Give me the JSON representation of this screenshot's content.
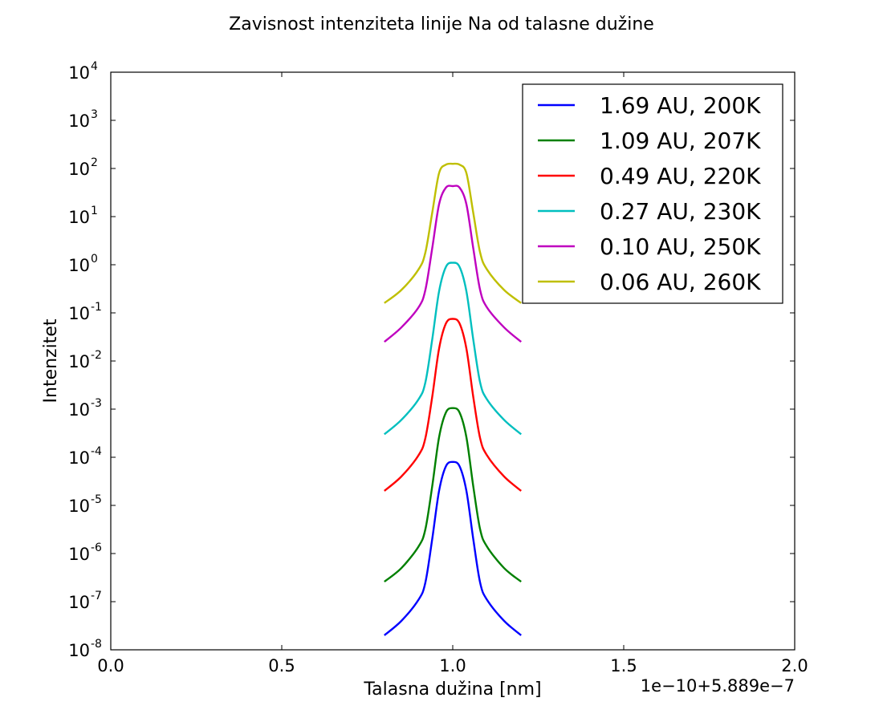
{
  "chart_data": {
    "type": "line",
    "title": "Zavisnost intenziteta linije Na od talasne dužine",
    "xlabel": "Talasna dužina [nm]",
    "ylabel": "Intenzitet",
    "x_offset_label": "1e−10+5.889e−7",
    "xlim": [
      0.0,
      2.0
    ],
    "ylim": [
      1e-08,
      10000.0
    ],
    "yscale": "log",
    "x_ticks": [
      "0.0",
      "0.5",
      "1.0",
      "1.5",
      "2.0"
    ],
    "x_tick_values": [
      0.0,
      0.5,
      1.0,
      1.5,
      2.0
    ],
    "y_ticks": [
      {
        "base": "10",
        "exp": "-8",
        "value": 1e-08
      },
      {
        "base": "10",
        "exp": "-7",
        "value": 1e-07
      },
      {
        "base": "10",
        "exp": "-6",
        "value": 1e-06
      },
      {
        "base": "10",
        "exp": "-5",
        "value": 1e-05
      },
      {
        "base": "10",
        "exp": "-4",
        "value": 0.0001
      },
      {
        "base": "10",
        "exp": "-3",
        "value": 0.001
      },
      {
        "base": "10",
        "exp": "-2",
        "value": 0.01
      },
      {
        "base": "10",
        "exp": "-1",
        "value": 0.1
      },
      {
        "base": "10",
        "exp": "0",
        "value": 1
      },
      {
        "base": "10",
        "exp": "1",
        "value": 10
      },
      {
        "base": "10",
        "exp": "2",
        "value": 100
      },
      {
        "base": "10",
        "exp": "3",
        "value": 1000
      },
      {
        "base": "10",
        "exp": "4",
        "value": 10000
      }
    ],
    "grid": false,
    "legend_position": "top-right",
    "x": [
      0.8,
      0.85,
      0.9,
      0.92,
      0.94,
      0.96,
      0.98,
      1.0,
      1.02,
      1.04,
      1.06,
      1.08,
      1.1,
      1.15,
      1.2
    ],
    "series": [
      {
        "name": "1.69 AU, 200K",
        "color": "#0000ff",
        "values": [
          2e-08,
          4e-08,
          1.1e-07,
          2.5e-07,
          2e-06,
          2e-05,
          6.5e-05,
          8e-05,
          6.5e-05,
          2e-05,
          2e-06,
          2.5e-07,
          1.1e-07,
          4e-08,
          2e-08
        ]
      },
      {
        "name": "1.09 AU, 207K",
        "color": "#008000",
        "values": [
          2.6e-07,
          5e-07,
          1.4e-06,
          3.2e-06,
          2.5e-05,
          0.00026,
          0.00085,
          0.00105,
          0.00085,
          0.00026,
          2.5e-05,
          3.2e-06,
          1.4e-06,
          5e-07,
          2.6e-07
        ]
      },
      {
        "name": "0.49 AU, 220K",
        "color": "#ff0000",
        "values": [
          2e-05,
          4e-05,
          0.00011,
          0.00025,
          0.0018,
          0.018,
          0.06,
          0.075,
          0.06,
          0.018,
          0.0018,
          0.00025,
          0.00011,
          4e-05,
          2e-05
        ]
      },
      {
        "name": "0.27 AU, 230K",
        "color": "#00bfbf",
        "values": [
          0.0003,
          0.0006,
          0.0016,
          0.0036,
          0.028,
          0.28,
          0.9,
          1.1,
          0.9,
          0.28,
          0.028,
          0.0036,
          0.0016,
          0.0006,
          0.0003
        ]
      },
      {
        "name": "0.10 AU, 250K",
        "color": "#bf00bf",
        "values": [
          0.025,
          0.05,
          0.13,
          0.3,
          2.2,
          18,
          40,
          43,
          40,
          18,
          2.2,
          0.3,
          0.13,
          0.05,
          0.025
        ]
      },
      {
        "name": "0.06 AU, 260K",
        "color": "#bfbf00",
        "values": [
          0.16,
          0.3,
          0.8,
          1.8,
          12,
          80,
          120,
          125,
          120,
          80,
          12,
          1.8,
          0.8,
          0.3,
          0.16
        ]
      }
    ]
  }
}
